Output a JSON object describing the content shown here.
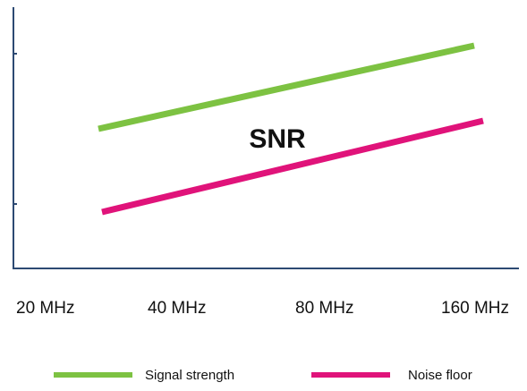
{
  "chart_data": {
    "type": "line",
    "categories": [
      "20 MHz",
      "40 MHz",
      "80 MHz",
      "160 MHz"
    ],
    "series": [
      {
        "name": "Signal strength",
        "color": "#7dc242",
        "start": 0.52,
        "end": 0.83
      },
      {
        "name": "Noise floor",
        "color": "#e0137a",
        "start": 0.21,
        "end": 0.55
      }
    ],
    "annotation": "SNR",
    "title": "",
    "xlabel": "",
    "ylabel": "",
    "legend_position": "bottom",
    "grid": false
  },
  "colors": {
    "axis": "#2d4a73",
    "text": "#111111"
  }
}
